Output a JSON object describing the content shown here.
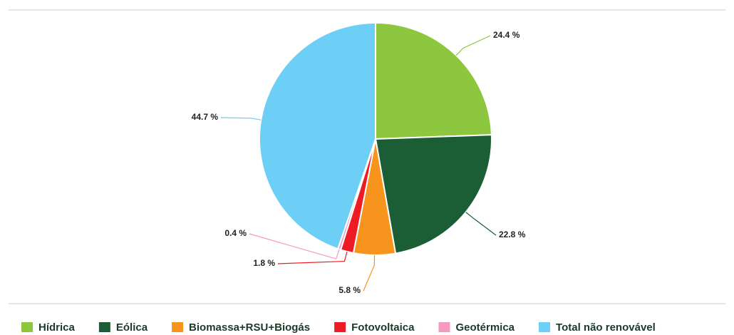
{
  "chart_data": {
    "type": "pie",
    "categories": [
      "Hídrica",
      "Eólica",
      "Biomassa+RSU+Biogás",
      "Fotovoltaica",
      "Geotérmica",
      "Total não renovável"
    ],
    "values": [
      24.4,
      22.8,
      5.8,
      1.8,
      0.4,
      44.7
    ],
    "value_labels": [
      "24.4 %",
      "22.8 %",
      "5.8 %",
      "1.8 %",
      "0.4 %",
      "44.7 %"
    ],
    "colors": [
      "#8dc63f",
      "#1b5e35",
      "#f7941d",
      "#ed1c24",
      "#f49ac1",
      "#6dcff6"
    ],
    "legend": "bottom"
  }
}
